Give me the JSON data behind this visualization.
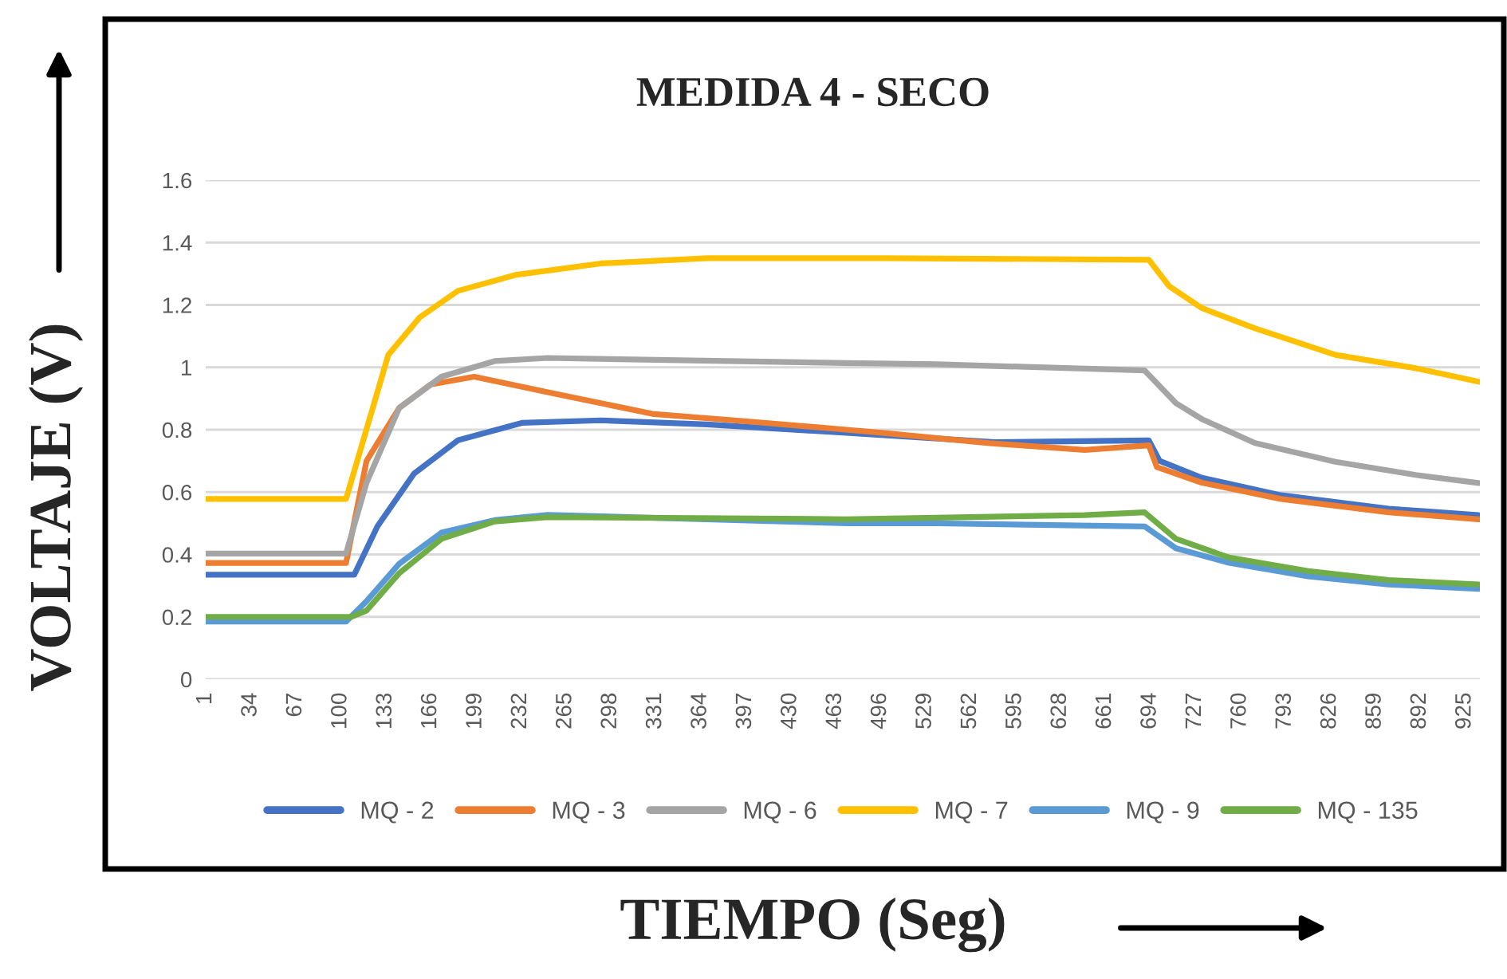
{
  "chart_data": {
    "type": "line",
    "title": "MEDIDA 4 - SECO",
    "xlabel": "TIEMPO (Seg)",
    "ylabel": "VOLTAJE (V)",
    "xlim": [
      1,
      936
    ],
    "xticks": [
      1,
      34,
      67,
      100,
      133,
      166,
      199,
      232,
      265,
      298,
      331,
      364,
      397,
      430,
      463,
      496,
      529,
      562,
      595,
      628,
      661,
      694,
      727,
      760,
      793,
      826,
      859,
      892,
      925
    ],
    "ylim": [
      0,
      1.6
    ],
    "yticks": [
      0,
      0.2,
      0.4,
      0.6,
      0.8,
      1,
      1.2,
      1.4,
      1.6
    ],
    "grid": "y",
    "legend": "bottom",
    "marker": "none",
    "line_style": "solid",
    "series": [
      {
        "name": "MQ - 2",
        "color": "#4472c4",
        "x": [
          1,
          50,
          110,
          127,
          154,
          186,
          233,
          291,
          369,
          471,
          580,
          693,
          701,
          732,
          790,
          869,
          935
        ],
        "values": [
          0.335,
          0.335,
          0.335,
          0.49,
          0.66,
          0.766,
          0.822,
          0.83,
          0.817,
          0.79,
          0.76,
          0.766,
          0.7,
          0.646,
          0.59,
          0.547,
          0.526
        ]
      },
      {
        "name": "MQ - 3",
        "color": "#ed7d31",
        "x": [
          1,
          50,
          104,
          119,
          143,
          166,
          198,
          252,
          330,
          389,
          471,
          497,
          576,
          646,
          693,
          699,
          732,
          790,
          869,
          935
        ],
        "values": [
          0.373,
          0.373,
          0.373,
          0.7,
          0.87,
          0.945,
          0.97,
          0.92,
          0.85,
          0.83,
          0.8,
          0.79,
          0.757,
          0.735,
          0.75,
          0.68,
          0.63,
          0.578,
          0.535,
          0.513
        ]
      },
      {
        "name": "MQ - 6",
        "color": "#a5a5a5",
        "x": [
          1,
          50,
          104,
          119,
          143,
          174,
          213,
          252,
          471,
          537,
          690,
          713,
          732,
          771,
          830,
          889,
          935
        ],
        "values": [
          0.403,
          0.403,
          0.403,
          0.63,
          0.87,
          0.97,
          1.02,
          1.03,
          1.014,
          1.01,
          0.99,
          0.885,
          0.834,
          0.757,
          0.697,
          0.655,
          0.629
        ]
      },
      {
        "name": "MQ - 7",
        "color": "#ffc000",
        "x": [
          1,
          50,
          104,
          135,
          158,
          186,
          228,
          291,
          369,
          500,
          693,
          708,
          732,
          771,
          830,
          889,
          935
        ],
        "values": [
          0.578,
          0.578,
          0.578,
          1.04,
          1.16,
          1.245,
          1.296,
          1.333,
          1.35,
          1.35,
          1.345,
          1.26,
          1.19,
          1.125,
          1.04,
          0.997,
          0.954
        ]
      },
      {
        "name": "MQ - 9",
        "color": "#5b9bd5",
        "x": [
          1,
          50,
          104,
          119,
          143,
          174,
          213,
          252,
          471,
          537,
          690,
          713,
          752,
          810,
          869,
          935
        ],
        "values": [
          0.185,
          0.185,
          0.185,
          0.25,
          0.37,
          0.47,
          0.51,
          0.527,
          0.5,
          0.5,
          0.49,
          0.42,
          0.373,
          0.33,
          0.304,
          0.29
        ]
      },
      {
        "name": "MQ - 135",
        "color": "#70ad47",
        "x": [
          1,
          50,
          108,
          119,
          143,
          174,
          213,
          252,
          471,
          537,
          646,
          690,
          713,
          752,
          810,
          869,
          935
        ],
        "values": [
          0.2,
          0.2,
          0.2,
          0.22,
          0.34,
          0.45,
          0.506,
          0.52,
          0.513,
          0.518,
          0.526,
          0.535,
          0.45,
          0.39,
          0.347,
          0.318,
          0.304
        ]
      }
    ]
  }
}
